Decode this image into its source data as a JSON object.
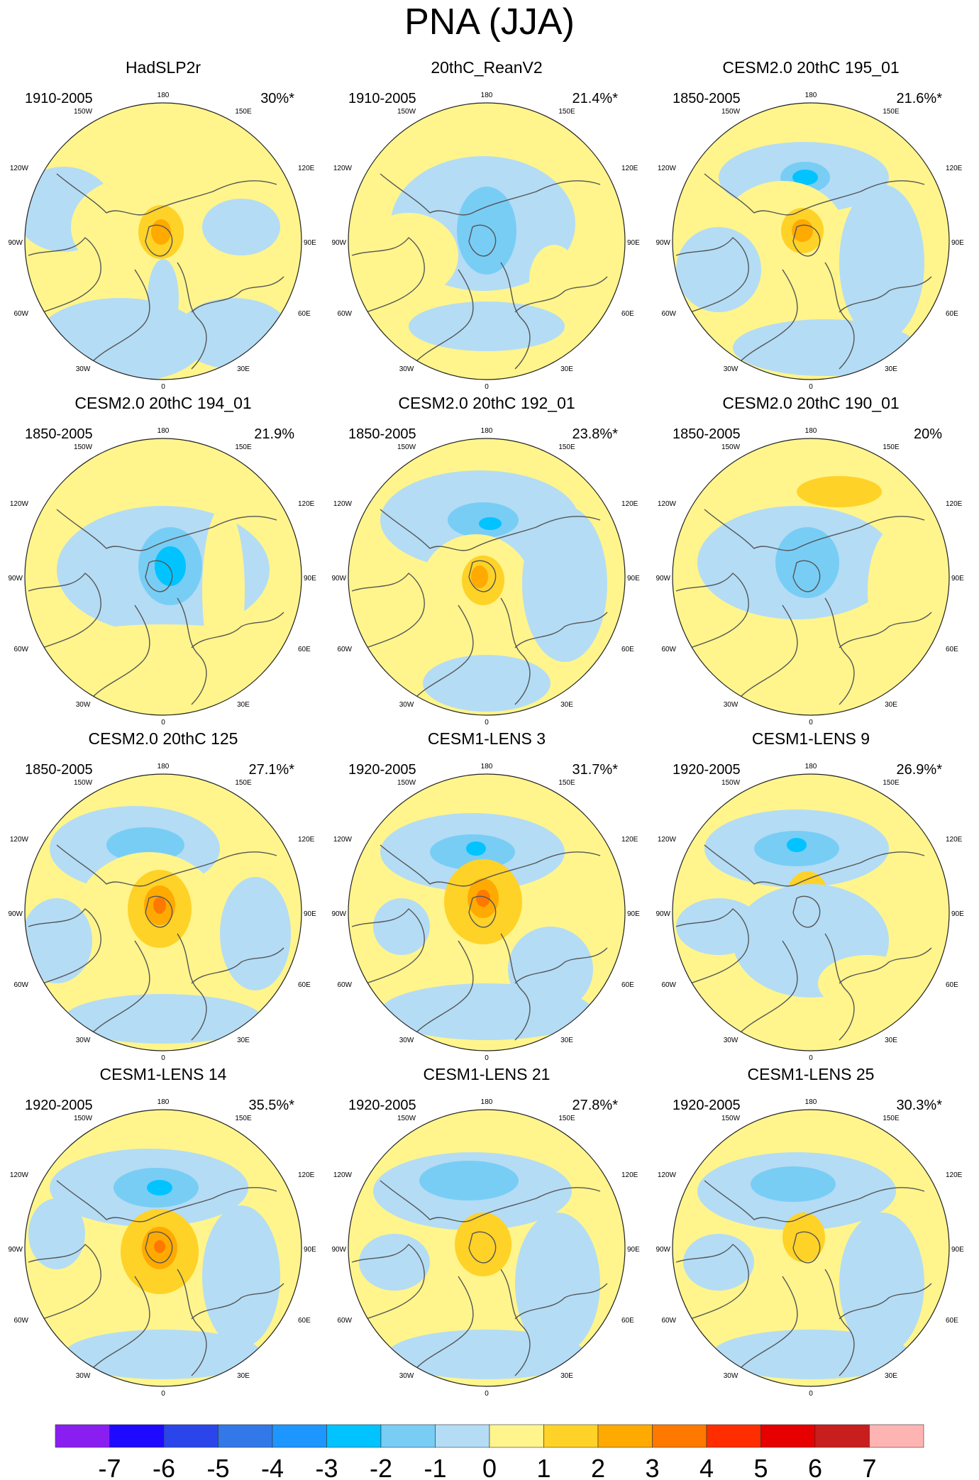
{
  "title": "PNA (JJA)",
  "longitude_labels": {
    "top": "180",
    "top_left": "150W",
    "top_right": "150E",
    "upper_left": "120W",
    "upper_right": "120E",
    "left": "90W",
    "right": "90E",
    "lower_left": "60W",
    "lower_right": "60E",
    "bottom_left": "30W",
    "bottom_right": "30E",
    "bottom": "0"
  },
  "panels": [
    {
      "title": "HadSLP2r",
      "period": "1910-2005",
      "percent": "30%*"
    },
    {
      "title": "20thC_ReanV2",
      "period": "1910-2005",
      "percent": "21.4%*"
    },
    {
      "title": "CESM2.0 20thC 195_01",
      "period": "1850-2005",
      "percent": "21.6%*"
    },
    {
      "title": "CESM2.0 20thC 194_01",
      "period": "1850-2005",
      "percent": "21.9%"
    },
    {
      "title": "CESM2.0 20thC 192_01",
      "period": "1850-2005",
      "percent": "23.8%*"
    },
    {
      "title": "CESM2.0 20thC 190_01",
      "period": "1850-2005",
      "percent": "20%"
    },
    {
      "title": "CESM2.0 20thC 125",
      "period": "1850-2005",
      "percent": "27.1%*"
    },
    {
      "title": "CESM1-LENS 3",
      "period": "1920-2005",
      "percent": "31.7%*"
    },
    {
      "title": "CESM1-LENS 9",
      "period": "1920-2005",
      "percent": "26.9%*"
    },
    {
      "title": "CESM1-LENS 14",
      "period": "1920-2005",
      "percent": "35.5%*"
    },
    {
      "title": "CESM1-LENS 21",
      "period": "1920-2005",
      "percent": "27.8%*"
    },
    {
      "title": "CESM1-LENS 25",
      "period": "1920-2005",
      "percent": "30.3%*"
    }
  ],
  "colorbar": {
    "labels": [
      "-7",
      "-6",
      "-5",
      "-4",
      "-3",
      "-2",
      "-1",
      "0",
      "1",
      "2",
      "3",
      "4",
      "5",
      "6",
      "7"
    ],
    "colors": [
      "#8a1ef0",
      "#1e0aff",
      "#2a46ea",
      "#3278e8",
      "#1e96ff",
      "#00c3ff",
      "#78cdf5",
      "#b4dcf5",
      "#fff58c",
      "#ffd228",
      "#ffaa00",
      "#ff7800",
      "#ff2d00",
      "#e60000",
      "#c81e1e",
      "#ffb4b4"
    ]
  },
  "colors": {
    "neg1": "#b4dcf5",
    "pos1": "#fff58c",
    "neg2": "#78cdf5",
    "neg3": "#00c3ff",
    "pos2": "#ffd228",
    "pos3": "#ffaa00",
    "pos4": "#ff7800",
    "land": "#555555"
  }
}
